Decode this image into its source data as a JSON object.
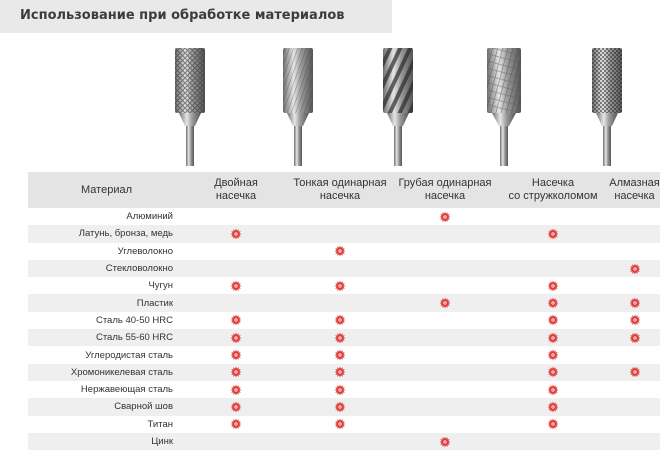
{
  "title": "Использование при обработке материалов",
  "columns": [
    "Материал",
    "Двойная\nнасечка",
    "Тонкая одинарная\nнасечка",
    "Грубая одинарная\nнасечка",
    "Насечка\nсо стружколомом",
    "Алмазная\nнасечка"
  ],
  "tools": [
    {
      "name": "double-cut-burr-image"
    },
    {
      "name": "fine-single-cut-burr-image"
    },
    {
      "name": "coarse-single-cut-burr-image"
    },
    {
      "name": "chipbreaker-cut-burr-image"
    },
    {
      "name": "diamond-cut-burr-image"
    }
  ],
  "mark_icon": "red-star-mark-icon",
  "mark_color": "#e23a3a",
  "rows": [
    {
      "material": "Алюминий",
      "marks": [
        false,
        false,
        true,
        false,
        false
      ]
    },
    {
      "material": "Латунь, бронза, медь",
      "marks": [
        true,
        false,
        false,
        true,
        false
      ]
    },
    {
      "material": "Углеволокно",
      "marks": [
        false,
        true,
        false,
        false,
        false
      ]
    },
    {
      "material": "Стекловолокно",
      "marks": [
        false,
        false,
        false,
        false,
        true
      ]
    },
    {
      "material": "Чугун",
      "marks": [
        true,
        true,
        false,
        true,
        false
      ]
    },
    {
      "material": "Пластик",
      "marks": [
        false,
        false,
        true,
        true,
        true
      ]
    },
    {
      "material": "Сталь 40-50 HRC",
      "marks": [
        true,
        true,
        false,
        true,
        true
      ]
    },
    {
      "material": "Сталь 55-60 HRC",
      "marks": [
        true,
        true,
        false,
        true,
        true
      ]
    },
    {
      "material": "Углеродистая сталь",
      "marks": [
        true,
        true,
        false,
        true,
        false
      ]
    },
    {
      "material": "Хромоникелевая сталь",
      "marks": [
        true,
        true,
        false,
        true,
        true
      ]
    },
    {
      "material": "Нержавеющая сталь",
      "marks": [
        true,
        true,
        false,
        true,
        false
      ]
    },
    {
      "material": "Сварной шов",
      "marks": [
        true,
        true,
        false,
        true,
        false
      ]
    },
    {
      "material": "Титан",
      "marks": [
        true,
        true,
        false,
        true,
        false
      ]
    },
    {
      "material": "Цинк",
      "marks": [
        false,
        false,
        true,
        false,
        false
      ]
    }
  ]
}
